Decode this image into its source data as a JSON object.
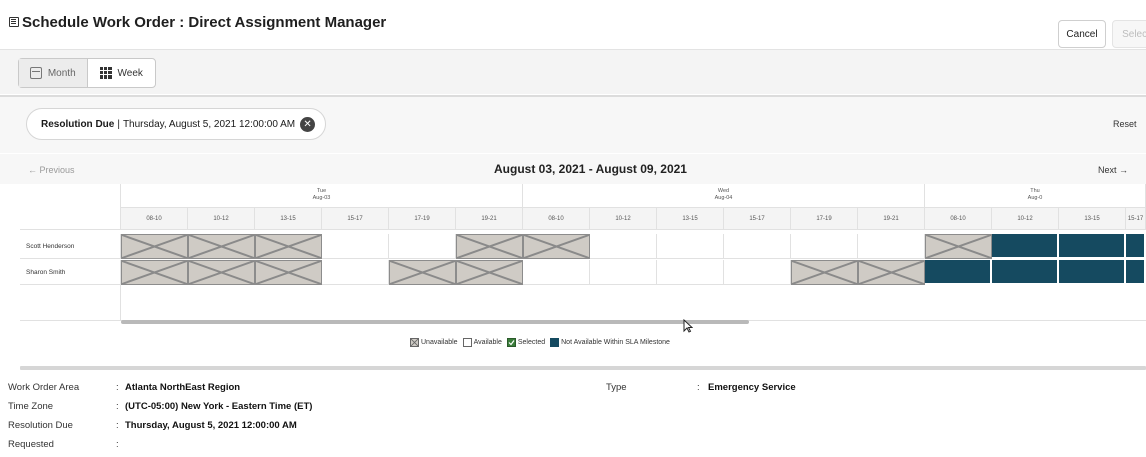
{
  "header": {
    "title": "Schedule Work Order : Direct Assignment Manager",
    "cancel_label": "Cancel",
    "select_label": "Select"
  },
  "view_toggle": {
    "month_label": "Month",
    "week_label": "Week",
    "active": "Week"
  },
  "filter": {
    "key": "Resolution Due",
    "separator": "|",
    "value": "Thursday, August 5, 2021 12:00:00 AM",
    "reset_label": "Reset"
  },
  "nav": {
    "previous_label": "← Previous",
    "next_label": "Next →",
    "range_title": "August 03, 2021 - August 09, 2021"
  },
  "schedule": {
    "days": [
      {
        "weekday": "Tue",
        "date": "Aug-03"
      },
      {
        "weekday": "Wed",
        "date": "Aug-04"
      },
      {
        "weekday": "Thu",
        "date": "Aug-0"
      }
    ],
    "slots": [
      "08-10",
      "10-12",
      "13-15",
      "15-17",
      "17-19",
      "19-21"
    ],
    "rows": [
      {
        "name": "Scott Henderson",
        "cells": [
          "u",
          "u",
          "u",
          "a",
          "a",
          "u",
          "u",
          "a",
          "a",
          "a",
          "a",
          "a",
          "u",
          "n",
          "n",
          "n"
        ]
      },
      {
        "name": "Sharon Smith",
        "cells": [
          "u",
          "u",
          "u",
          "a",
          "u",
          "u",
          "a",
          "a",
          "a",
          "a",
          "u",
          "u",
          "n",
          "n",
          "n",
          "n"
        ]
      }
    ]
  },
  "legend": {
    "unavailable": "Unavailable",
    "available": "Available",
    "selected": "Selected",
    "not_available": "Not Available Within SLA Milestone",
    "colors": {
      "unavailable": "#cfcbc5",
      "selected": "#3a7d3a",
      "not_available": "#154a60"
    }
  },
  "details": {
    "work_order_area_label": "Work Order Area",
    "work_order_area_value": "Atlanta NorthEast Region",
    "time_zone_label": "Time Zone",
    "time_zone_value": "(UTC-05:00) New York - Eastern Time (ET)",
    "resolution_due_label": "Resolution Due",
    "resolution_due_value": "Thursday, August 5, 2021 12:00:00 AM",
    "requested_label": "Requested",
    "requested_value": "",
    "type_label": "Type",
    "type_value": "Emergency Service",
    "colon": ":"
  }
}
